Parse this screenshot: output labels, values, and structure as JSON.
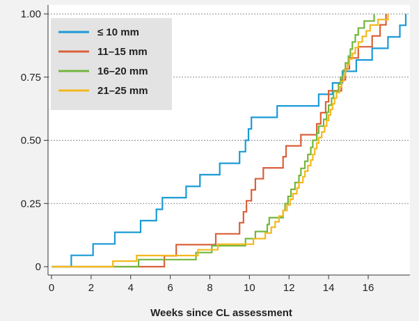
{
  "chart_data": {
    "type": "line",
    "step": true,
    "xlabel": "Weeks since CL assessment",
    "ylabel": "",
    "xlim": [
      -0.3,
      18.2
    ],
    "ylim": [
      0,
      1.0
    ],
    "x_ticks": [
      0,
      2,
      4,
      6,
      8,
      10,
      12,
      14,
      16
    ],
    "y_ticks": [
      0,
      0.25,
      0.5,
      0.75,
      1.0
    ],
    "y_tick_labels": [
      "0",
      "0.25",
      "0.50",
      "0.75",
      "1.00"
    ],
    "grid": "horizontal dotted",
    "legend_position": "top-left",
    "series": [
      {
        "name": "≤ 10 mm",
        "color": "#1a9ad6",
        "points": [
          [
            0,
            0
          ],
          [
            1.0,
            0
          ],
          [
            1.0,
            0.045
          ],
          [
            2.1,
            0.045
          ],
          [
            2.1,
            0.09
          ],
          [
            3.2,
            0.09
          ],
          [
            3.2,
            0.136
          ],
          [
            4.5,
            0.136
          ],
          [
            4.5,
            0.182
          ],
          [
            5.3,
            0.182
          ],
          [
            5.3,
            0.227
          ],
          [
            5.6,
            0.227
          ],
          [
            5.6,
            0.273
          ],
          [
            6.8,
            0.273
          ],
          [
            6.8,
            0.318
          ],
          [
            7.5,
            0.318
          ],
          [
            7.5,
            0.364
          ],
          [
            8.5,
            0.364
          ],
          [
            8.5,
            0.409
          ],
          [
            9.5,
            0.409
          ],
          [
            9.5,
            0.455
          ],
          [
            9.8,
            0.455
          ],
          [
            9.8,
            0.5
          ],
          [
            9.95,
            0.5
          ],
          [
            9.95,
            0.545
          ],
          [
            10.1,
            0.545
          ],
          [
            10.1,
            0.591
          ],
          [
            11.4,
            0.591
          ],
          [
            11.4,
            0.636
          ],
          [
            13.5,
            0.636
          ],
          [
            13.5,
            0.682
          ],
          [
            14.2,
            0.682
          ],
          [
            14.2,
            0.727
          ],
          [
            14.7,
            0.727
          ],
          [
            14.7,
            0.773
          ],
          [
            15.4,
            0.773
          ],
          [
            15.4,
            0.818
          ],
          [
            16.2,
            0.818
          ],
          [
            16.2,
            0.864
          ],
          [
            17.0,
            0.864
          ],
          [
            17.0,
            0.909
          ],
          [
            17.6,
            0.909
          ],
          [
            17.6,
            0.955
          ],
          [
            17.9,
            0.955
          ],
          [
            17.9,
            1.0
          ]
        ]
      },
      {
        "name": "11–15 mm",
        "color": "#d9603b",
        "points": [
          [
            0,
            0
          ],
          [
            5.7,
            0
          ],
          [
            5.7,
            0.043
          ],
          [
            6.3,
            0.043
          ],
          [
            6.3,
            0.087
          ],
          [
            8.3,
            0.087
          ],
          [
            8.3,
            0.13
          ],
          [
            9.5,
            0.13
          ],
          [
            9.5,
            0.174
          ],
          [
            9.7,
            0.174
          ],
          [
            9.7,
            0.217
          ],
          [
            9.85,
            0.217
          ],
          [
            9.85,
            0.261
          ],
          [
            10.1,
            0.261
          ],
          [
            10.1,
            0.304
          ],
          [
            10.3,
            0.304
          ],
          [
            10.3,
            0.348
          ],
          [
            10.7,
            0.348
          ],
          [
            10.7,
            0.391
          ],
          [
            11.7,
            0.391
          ],
          [
            11.7,
            0.435
          ],
          [
            11.85,
            0.435
          ],
          [
            11.85,
            0.478
          ],
          [
            12.6,
            0.478
          ],
          [
            12.6,
            0.522
          ],
          [
            13.4,
            0.522
          ],
          [
            13.4,
            0.565
          ],
          [
            13.6,
            0.565
          ],
          [
            13.6,
            0.609
          ],
          [
            13.85,
            0.609
          ],
          [
            13.85,
            0.652
          ],
          [
            14.0,
            0.652
          ],
          [
            14.0,
            0.696
          ],
          [
            14.65,
            0.696
          ],
          [
            14.65,
            0.739
          ],
          [
            14.85,
            0.739
          ],
          [
            14.85,
            0.783
          ],
          [
            15.05,
            0.783
          ],
          [
            15.05,
            0.826
          ],
          [
            15.5,
            0.826
          ],
          [
            15.5,
            0.87
          ],
          [
            16.2,
            0.87
          ],
          [
            16.2,
            0.913
          ],
          [
            16.6,
            0.913
          ],
          [
            16.6,
            0.957
          ],
          [
            16.9,
            0.957
          ],
          [
            16.9,
            1.0
          ]
        ]
      },
      {
        "name": "16–20 mm",
        "color": "#73b63e",
        "points": [
          [
            0,
            0
          ],
          [
            4.4,
            0
          ],
          [
            4.4,
            0.028
          ],
          [
            7.3,
            0.028
          ],
          [
            7.3,
            0.056
          ],
          [
            8.1,
            0.056
          ],
          [
            8.1,
            0.083
          ],
          [
            9.8,
            0.083
          ],
          [
            9.8,
            0.111
          ],
          [
            10.3,
            0.111
          ],
          [
            10.3,
            0.139
          ],
          [
            10.9,
            0.139
          ],
          [
            10.9,
            0.167
          ],
          [
            11.0,
            0.167
          ],
          [
            11.0,
            0.194
          ],
          [
            11.7,
            0.194
          ],
          [
            11.7,
            0.222
          ],
          [
            11.8,
            0.222
          ],
          [
            11.8,
            0.25
          ],
          [
            11.95,
            0.25
          ],
          [
            11.95,
            0.278
          ],
          [
            12.1,
            0.278
          ],
          [
            12.1,
            0.306
          ],
          [
            12.3,
            0.306
          ],
          [
            12.3,
            0.333
          ],
          [
            12.5,
            0.333
          ],
          [
            12.5,
            0.361
          ],
          [
            12.6,
            0.361
          ],
          [
            12.6,
            0.389
          ],
          [
            12.8,
            0.389
          ],
          [
            12.8,
            0.417
          ],
          [
            12.95,
            0.417
          ],
          [
            12.95,
            0.444
          ],
          [
            13.1,
            0.444
          ],
          [
            13.1,
            0.472
          ],
          [
            13.2,
            0.472
          ],
          [
            13.2,
            0.5
          ],
          [
            13.4,
            0.5
          ],
          [
            13.4,
            0.528
          ],
          [
            13.5,
            0.528
          ],
          [
            13.5,
            0.556
          ],
          [
            13.75,
            0.556
          ],
          [
            13.75,
            0.583
          ],
          [
            13.9,
            0.583
          ],
          [
            13.9,
            0.611
          ],
          [
            14.0,
            0.611
          ],
          [
            14.0,
            0.639
          ],
          [
            14.15,
            0.639
          ],
          [
            14.15,
            0.667
          ],
          [
            14.25,
            0.667
          ],
          [
            14.25,
            0.694
          ],
          [
            14.5,
            0.694
          ],
          [
            14.5,
            0.722
          ],
          [
            14.6,
            0.722
          ],
          [
            14.6,
            0.75
          ],
          [
            14.75,
            0.75
          ],
          [
            14.75,
            0.778
          ],
          [
            14.85,
            0.778
          ],
          [
            14.85,
            0.806
          ],
          [
            15.0,
            0.806
          ],
          [
            15.0,
            0.833
          ],
          [
            15.1,
            0.833
          ],
          [
            15.1,
            0.861
          ],
          [
            15.2,
            0.861
          ],
          [
            15.2,
            0.889
          ],
          [
            15.35,
            0.889
          ],
          [
            15.35,
            0.917
          ],
          [
            15.5,
            0.917
          ],
          [
            15.5,
            0.944
          ],
          [
            15.8,
            0.944
          ],
          [
            15.8,
            0.972
          ],
          [
            16.3,
            0.972
          ],
          [
            16.3,
            1.0
          ]
        ]
      },
      {
        "name": "21–25 mm",
        "color": "#f4b81c",
        "points": [
          [
            0,
            0
          ],
          [
            3.1,
            0
          ],
          [
            3.1,
            0.022
          ],
          [
            4.3,
            0.022
          ],
          [
            4.3,
            0.044
          ],
          [
            7.4,
            0.044
          ],
          [
            7.4,
            0.067
          ],
          [
            8.4,
            0.067
          ],
          [
            8.4,
            0.089
          ],
          [
            10.2,
            0.089
          ],
          [
            10.2,
            0.111
          ],
          [
            10.8,
            0.111
          ],
          [
            10.8,
            0.133
          ],
          [
            11.1,
            0.133
          ],
          [
            11.1,
            0.156
          ],
          [
            11.3,
            0.156
          ],
          [
            11.3,
            0.178
          ],
          [
            11.5,
            0.178
          ],
          [
            11.5,
            0.2
          ],
          [
            11.7,
            0.2
          ],
          [
            11.7,
            0.222
          ],
          [
            11.9,
            0.222
          ],
          [
            11.9,
            0.244
          ],
          [
            12.05,
            0.244
          ],
          [
            12.05,
            0.267
          ],
          [
            12.2,
            0.267
          ],
          [
            12.2,
            0.289
          ],
          [
            12.4,
            0.289
          ],
          [
            12.4,
            0.311
          ],
          [
            12.5,
            0.311
          ],
          [
            12.5,
            0.333
          ],
          [
            12.7,
            0.333
          ],
          [
            12.7,
            0.356
          ],
          [
            12.8,
            0.356
          ],
          [
            12.8,
            0.378
          ],
          [
            12.95,
            0.378
          ],
          [
            12.95,
            0.4
          ],
          [
            13.1,
            0.4
          ],
          [
            13.1,
            0.422
          ],
          [
            13.2,
            0.422
          ],
          [
            13.2,
            0.444
          ],
          [
            13.3,
            0.444
          ],
          [
            13.3,
            0.467
          ],
          [
            13.4,
            0.467
          ],
          [
            13.4,
            0.489
          ],
          [
            13.5,
            0.489
          ],
          [
            13.5,
            0.511
          ],
          [
            13.65,
            0.511
          ],
          [
            13.65,
            0.533
          ],
          [
            13.8,
            0.533
          ],
          [
            13.8,
            0.556
          ],
          [
            13.9,
            0.556
          ],
          [
            13.9,
            0.578
          ],
          [
            14.0,
            0.578
          ],
          [
            14.0,
            0.6
          ],
          [
            14.1,
            0.6
          ],
          [
            14.1,
            0.622
          ],
          [
            14.2,
            0.622
          ],
          [
            14.2,
            0.644
          ],
          [
            14.3,
            0.644
          ],
          [
            14.3,
            0.667
          ],
          [
            14.4,
            0.667
          ],
          [
            14.4,
            0.689
          ],
          [
            14.55,
            0.689
          ],
          [
            14.55,
            0.711
          ],
          [
            14.65,
            0.711
          ],
          [
            14.65,
            0.733
          ],
          [
            14.75,
            0.733
          ],
          [
            14.75,
            0.756
          ],
          [
            14.85,
            0.756
          ],
          [
            14.85,
            0.778
          ],
          [
            14.95,
            0.778
          ],
          [
            14.95,
            0.8
          ],
          [
            15.05,
            0.8
          ],
          [
            15.05,
            0.822
          ],
          [
            15.2,
            0.822
          ],
          [
            15.2,
            0.844
          ],
          [
            15.35,
            0.844
          ],
          [
            15.35,
            0.867
          ],
          [
            15.5,
            0.867
          ],
          [
            15.5,
            0.889
          ],
          [
            15.7,
            0.889
          ],
          [
            15.7,
            0.911
          ],
          [
            15.9,
            0.911
          ],
          [
            15.9,
            0.933
          ],
          [
            16.1,
            0.933
          ],
          [
            16.1,
            0.956
          ],
          [
            16.5,
            0.956
          ],
          [
            16.5,
            0.978
          ],
          [
            17.0,
            0.978
          ],
          [
            17.0,
            1.0
          ]
        ]
      }
    ]
  }
}
